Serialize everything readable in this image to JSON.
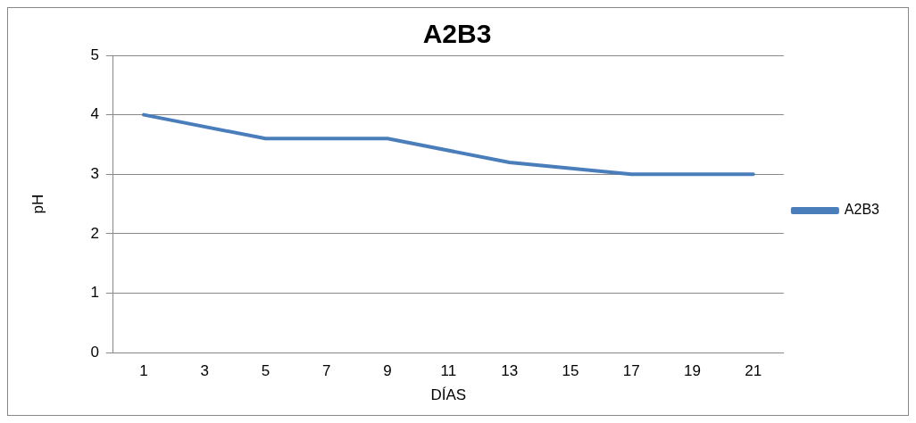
{
  "chart_data": {
    "type": "line",
    "title": "A2B3",
    "xlabel": "DÍAS",
    "ylabel": "pH",
    "x": [
      1,
      5,
      9,
      13,
      17,
      21
    ],
    "series": [
      {
        "name": "A2B3",
        "color": "#4a7ebb",
        "values": [
          4,
          3.6,
          3.6,
          3.2,
          3,
          3
        ]
      }
    ],
    "xlim": [
      0,
      22
    ],
    "xticks": [
      1,
      3,
      5,
      7,
      9,
      11,
      13,
      15,
      17,
      19,
      21
    ],
    "ylim": [
      0,
      5
    ],
    "yticks": [
      0,
      1,
      2,
      3,
      4,
      5
    ],
    "grid": "y",
    "legend": "right",
    "marker": "none",
    "line_style": "solid"
  }
}
